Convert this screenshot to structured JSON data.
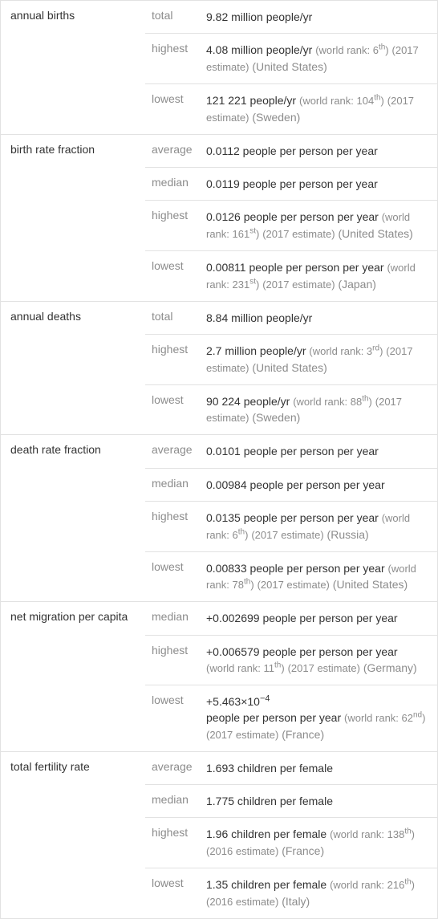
{
  "sections": [
    {
      "title": "annual births",
      "rows": [
        {
          "label": "total",
          "value": "9.82 million people/yr"
        },
        {
          "label": "highest",
          "value": "4.08 million people/yr",
          "rank_pre": "(world rank: 6",
          "rank_ord": "th",
          "rank_post": ")",
          "estimate": "(2017 estimate)",
          "country": "(United States)"
        },
        {
          "label": "lowest",
          "value": "121 221 people/yr",
          "rank_pre": "(world rank: 104",
          "rank_ord": "th",
          "rank_post": ")",
          "estimate": "(2017 estimate)",
          "country": "(Sweden)"
        }
      ]
    },
    {
      "title": "birth rate fraction",
      "rows": [
        {
          "label": "average",
          "value": "0.0112 people per person per year"
        },
        {
          "label": "median",
          "value": "0.0119 people per person per year"
        },
        {
          "label": "highest",
          "value": "0.0126 people per person per year",
          "rank_pre": "(world rank: 161",
          "rank_ord": "st",
          "rank_post": ")",
          "estimate": "(2017 estimate)",
          "country": "(United States)"
        },
        {
          "label": "lowest",
          "value": "0.00811 people per person per year",
          "rank_pre": "(world rank: 231",
          "rank_ord": "st",
          "rank_post": ")",
          "estimate": "(2017 estimate)",
          "country": "(Japan)"
        }
      ]
    },
    {
      "title": "annual deaths",
      "rows": [
        {
          "label": "total",
          "value": "8.84 million people/yr"
        },
        {
          "label": "highest",
          "value": "2.7 million people/yr",
          "rank_pre": "(world rank: 3",
          "rank_ord": "rd",
          "rank_post": ")",
          "estimate": "(2017 estimate)",
          "country": "(United States)"
        },
        {
          "label": "lowest",
          "value": "90 224 people/yr",
          "rank_pre": "(world rank: 88",
          "rank_ord": "th",
          "rank_post": ")",
          "estimate": "(2017 estimate)",
          "country": "(Sweden)"
        }
      ]
    },
    {
      "title": "death rate fraction",
      "rows": [
        {
          "label": "average",
          "value": "0.0101 people per person per year"
        },
        {
          "label": "median",
          "value": "0.00984 people per person per year"
        },
        {
          "label": "highest",
          "value": "0.0135 people per person per year",
          "rank_pre": "(world rank: 6",
          "rank_ord": "th",
          "rank_post": ")",
          "estimate": "(2017 estimate)",
          "country": "(Russia)"
        },
        {
          "label": "lowest",
          "value": "0.00833 people per person per year",
          "rank_pre": "(world rank: 78",
          "rank_ord": "th",
          "rank_post": ")",
          "estimate": "(2017 estimate)",
          "country": "(United States)"
        }
      ]
    },
    {
      "title": "net migration per capita",
      "rows": [
        {
          "label": "median",
          "value": "+0.002699 people per person per year"
        },
        {
          "label": "highest",
          "value": "+0.006579 people per person per year",
          "rank_pre": "(world rank: 11",
          "rank_ord": "th",
          "rank_post": ")",
          "estimate": "(2017 estimate)",
          "country": "(Germany)"
        },
        {
          "label": "lowest",
          "sci_mant": "+5.463×10",
          "sci_exp": "−4",
          "value_tail": "people per person per year",
          "rank_pre": "(world rank: 62",
          "rank_ord": "nd",
          "rank_post": ")",
          "estimate": "(2017 estimate)",
          "country": "(France)"
        }
      ]
    },
    {
      "title": "total fertility rate",
      "rows": [
        {
          "label": "average",
          "value": "1.693 children per female"
        },
        {
          "label": "median",
          "value": "1.775 children per female"
        },
        {
          "label": "highest",
          "value": "1.96 children per female",
          "rank_pre": "(world rank: 138",
          "rank_ord": "th",
          "rank_post": ")",
          "estimate": "(2016 estimate)",
          "country": "(France)"
        },
        {
          "label": "lowest",
          "value": "1.35 children per female",
          "rank_pre": "(world rank: 216",
          "rank_ord": "th",
          "rank_post": ")",
          "estimate": "(2016 estimate)",
          "country": "(Italy)"
        }
      ]
    }
  ],
  "colors": {
    "border": "#e2e2e2",
    "text_primary": "#333333",
    "text_secondary": "#8c8c8c",
    "background": "#ffffff"
  }
}
